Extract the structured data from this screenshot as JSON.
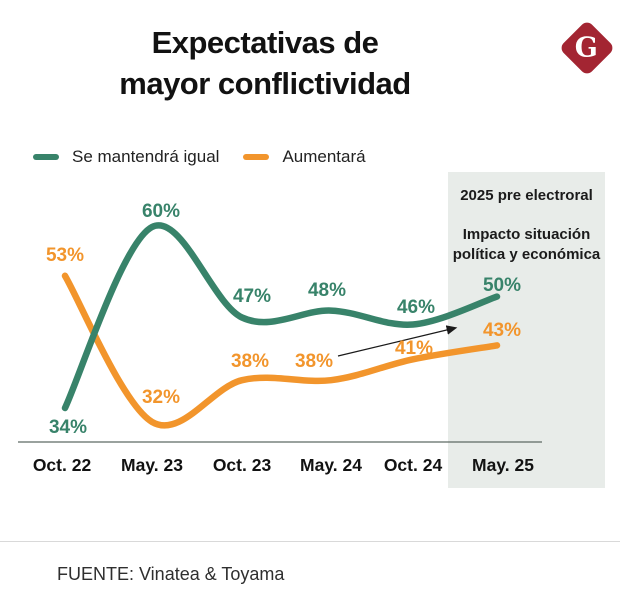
{
  "page": {
    "title_line1": "Expectativas de",
    "title_line2": "mayor conflictividad",
    "source": "FUENTE: Vinatea & Toyama"
  },
  "logo": {
    "letter": "G",
    "bg_color": "#a32532",
    "letter_color": "#ffffff"
  },
  "annotation_box": {
    "heading": "2025 pre electroral",
    "subheading_line1": "Impacto situación",
    "subheading_line2": "política y económica",
    "bg_color": "#e8ece9"
  },
  "chart_data": {
    "type": "line",
    "title": "Expectativas de mayor conflictividad",
    "categories": [
      "Oct. 22",
      "May. 23",
      "Oct. 23",
      "May. 24",
      "Oct. 24",
      "May. 25"
    ],
    "unit": "%",
    "series": [
      {
        "name": "Se mantendrá igual",
        "color": "#38836a",
        "values": [
          34,
          60,
          47,
          48,
          46,
          50
        ]
      },
      {
        "name": "Aumentará",
        "color": "#f2952c",
        "values": [
          53,
          32,
          38,
          38,
          41,
          43
        ]
      }
    ],
    "ylim": [
      28,
      64
    ],
    "grid": false,
    "legend_position": "top-left",
    "highlight_category": "May. 25",
    "annotation_arrow": {
      "from_category": "May. 24",
      "to_category": "May. 25"
    }
  }
}
